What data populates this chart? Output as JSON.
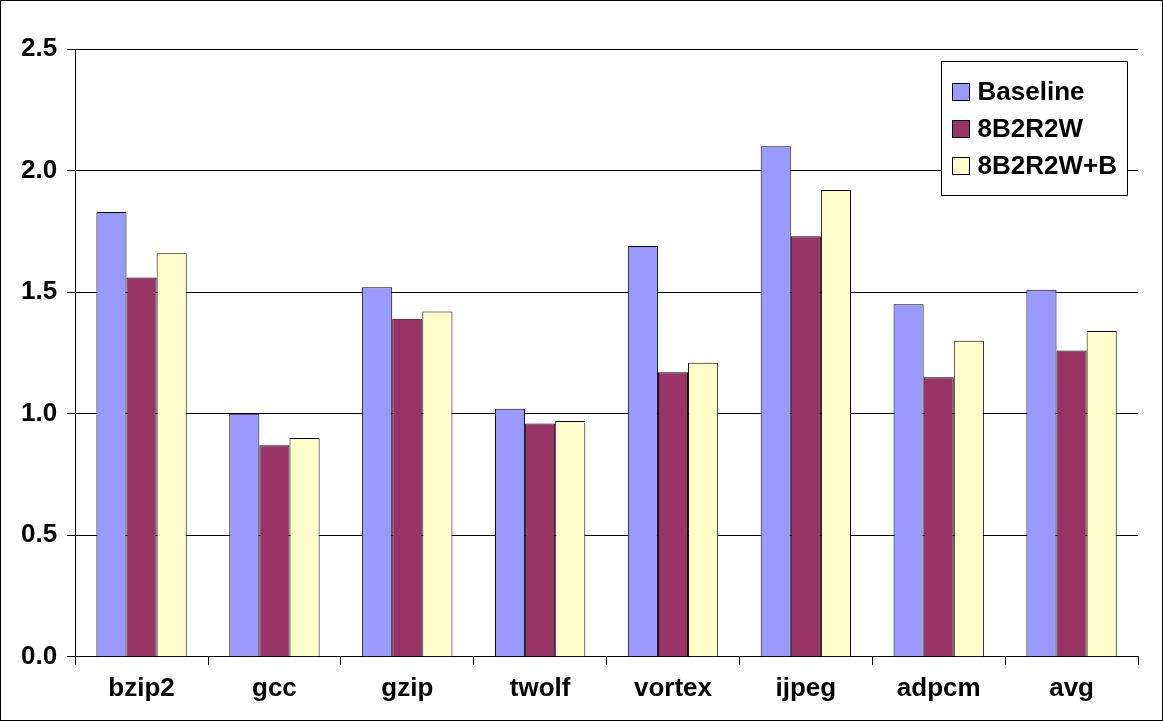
{
  "chart_data": {
    "type": "bar",
    "categories": [
      "bzip2",
      "gcc",
      "gzip",
      "twolf",
      "vortex",
      "ijpeg",
      "adpcm",
      "avg"
    ],
    "series": [
      {
        "name": "Baseline",
        "color": "#9999ff",
        "values": [
          1.83,
          1.0,
          1.52,
          1.02,
          1.69,
          2.1,
          1.45,
          1.51
        ]
      },
      {
        "name": "8B2R2W",
        "color": "#993366",
        "values": [
          1.56,
          0.87,
          1.39,
          0.96,
          1.17,
          1.73,
          1.15,
          1.26
        ]
      },
      {
        "name": "8B2R2W+B",
        "color": "#ffffcc",
        "values": [
          1.66,
          0.9,
          1.42,
          0.97,
          1.21,
          1.92,
          1.3,
          1.34
        ]
      }
    ],
    "ylim": [
      0,
      2.5
    ],
    "yticks": [
      {
        "value": 0,
        "label": "0.0"
      },
      {
        "value": 0.5,
        "label": "0.5"
      },
      {
        "value": 1,
        "label": "1.0"
      },
      {
        "value": 1.5,
        "label": "1.5"
      },
      {
        "value": 2,
        "label": "2.0"
      },
      {
        "value": 2.5,
        "label": "2.5"
      }
    ],
    "grid": "y",
    "legend": "top right"
  }
}
